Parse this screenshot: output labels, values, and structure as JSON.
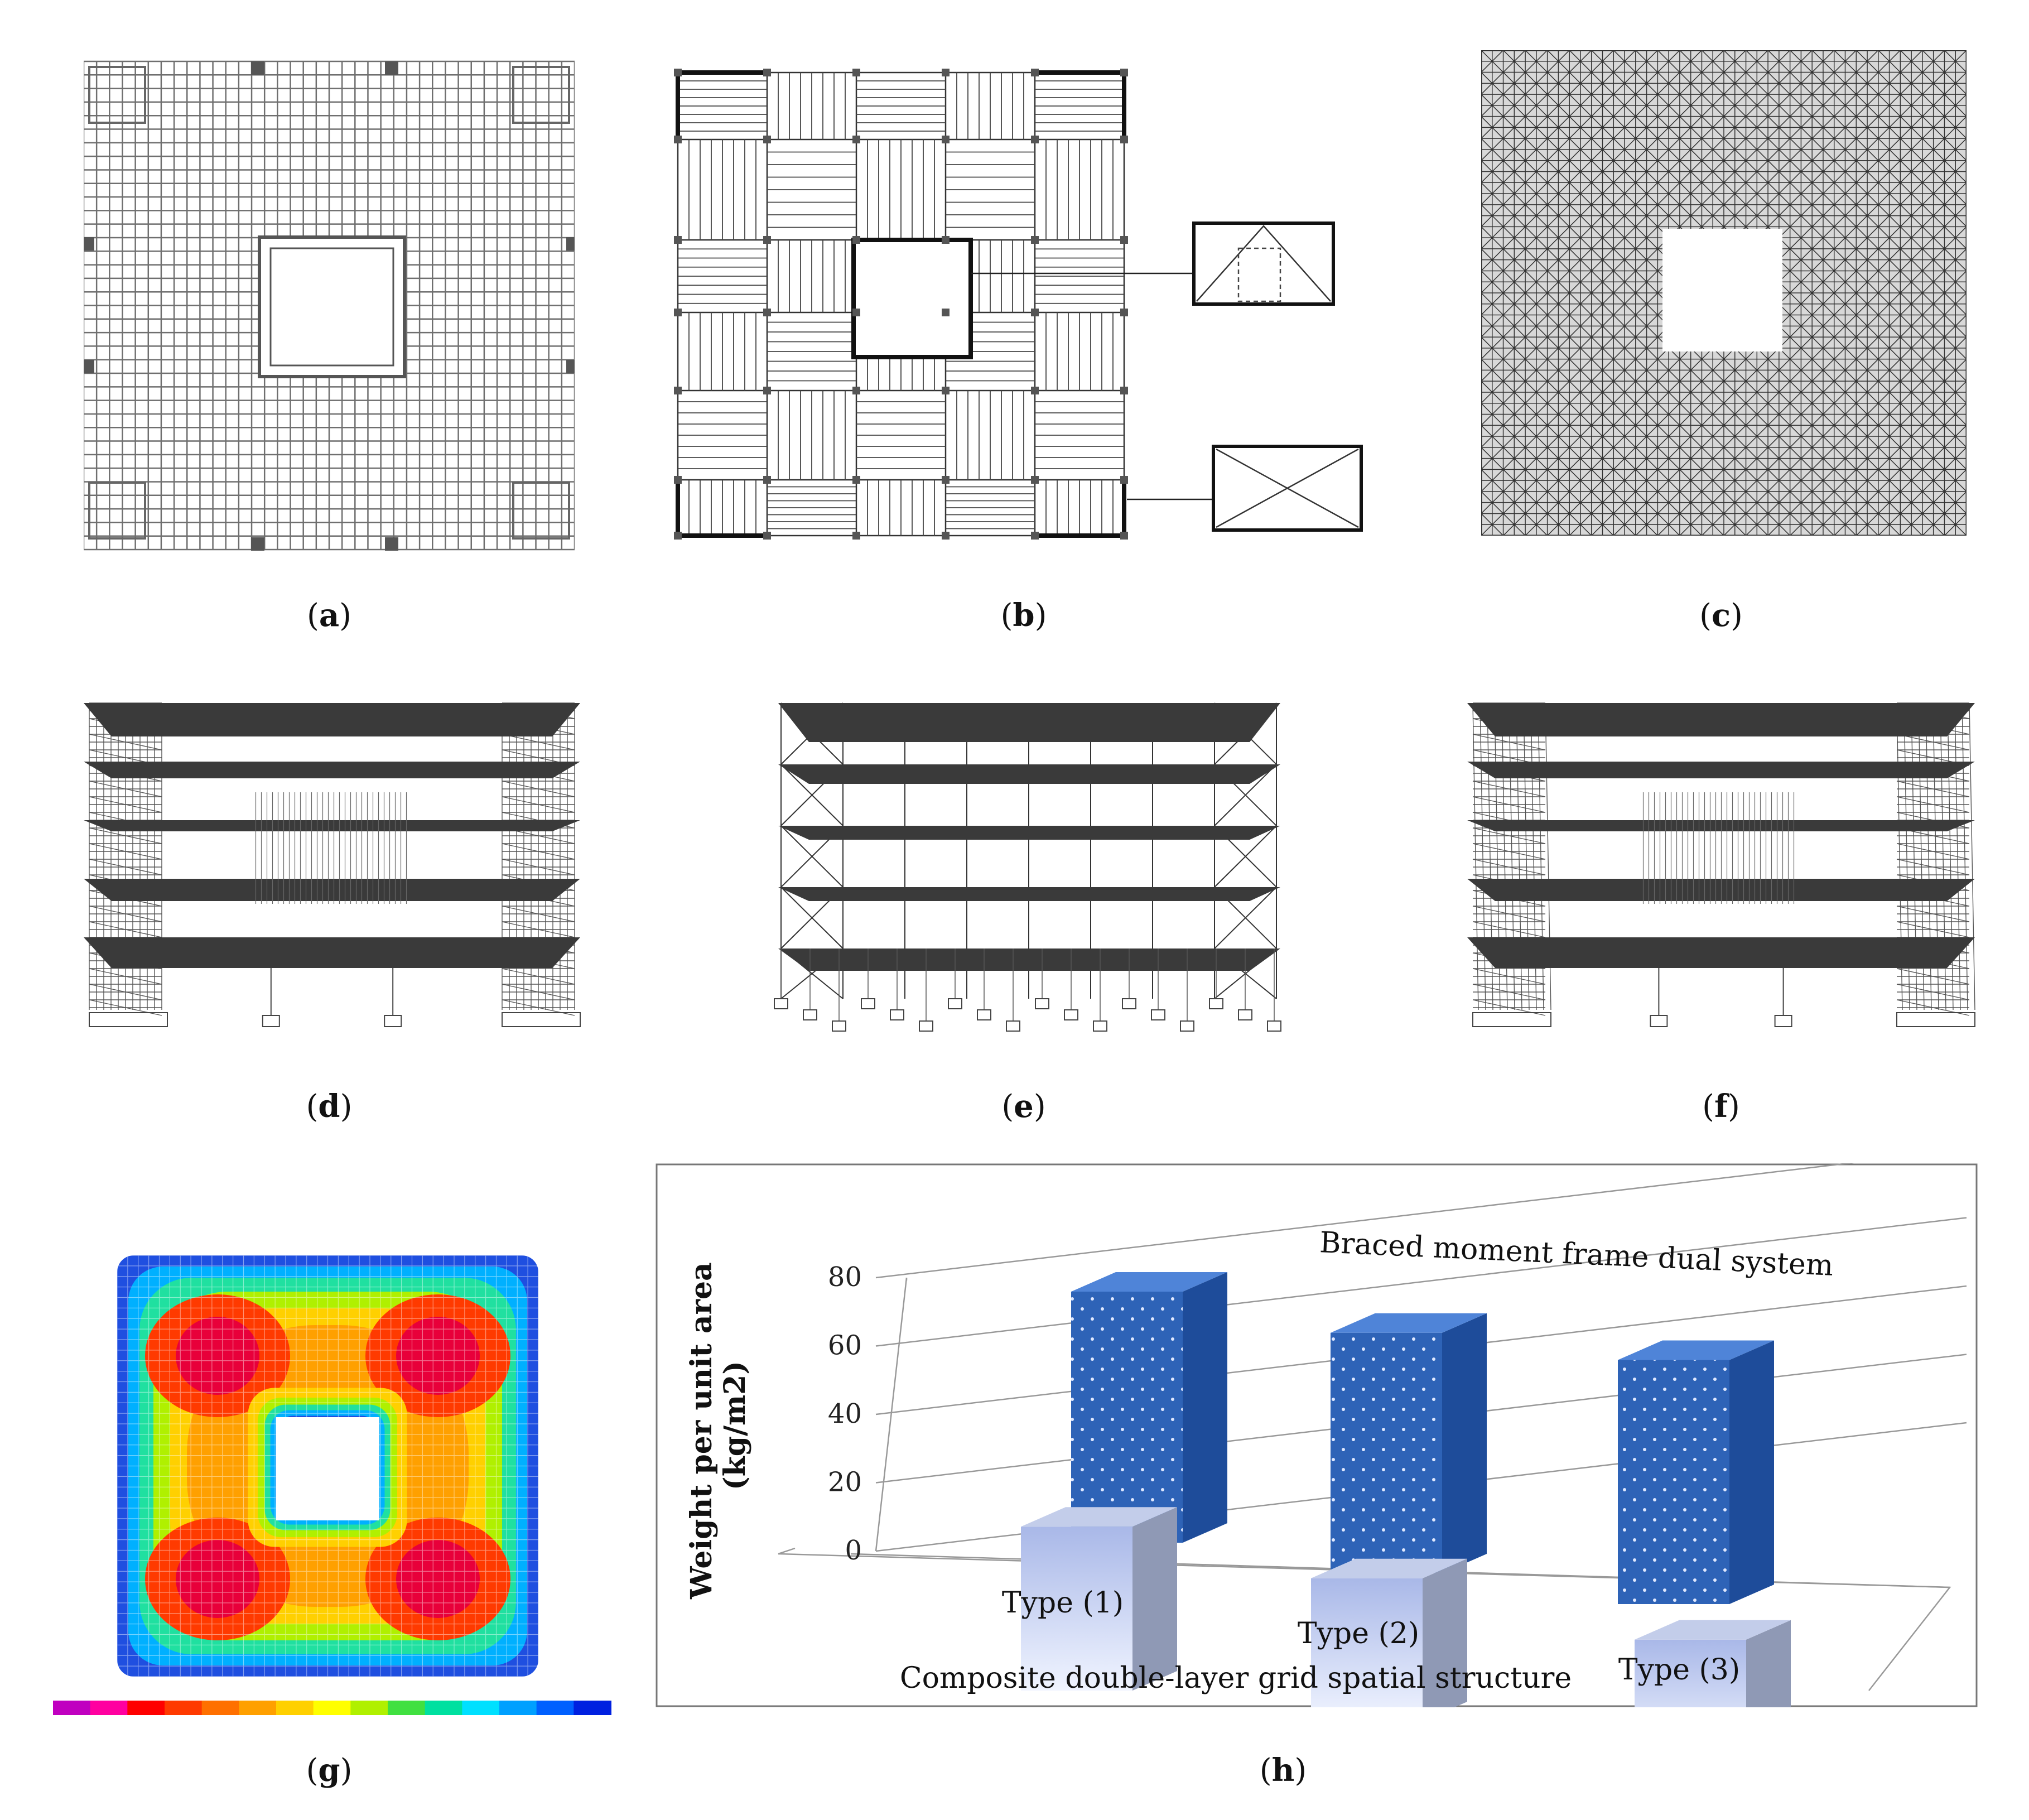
{
  "captions": {
    "a": "a",
    "b": "b",
    "c": "c",
    "d": "d",
    "e": "e",
    "f": "f",
    "g": "g",
    "h": "h"
  },
  "colors": {
    "grid_line": "#6f6f6f",
    "slab": "#3a3a3a",
    "bar_light": "#c9d2ee",
    "bar_dark": "#2e63b7"
  },
  "contour_legend": {
    "colors": [
      "#c000c0",
      "#ff00a0",
      "#ff0000",
      "#ff3a00",
      "#ff7000",
      "#ffa000",
      "#ffd000",
      "#ffff00",
      "#b0f000",
      "#40e040",
      "#00e0a0",
      "#00e0ff",
      "#00a0ff",
      "#0060ff",
      "#0020e0"
    ]
  },
  "chart_data": {
    "type": "bar",
    "title": "",
    "categories": [
      "Type (1)",
      "Type (2)",
      "Type (3)"
    ],
    "ylabel": "Weight per unit area (kg/m2)",
    "xlabel": "",
    "ylim": [
      0,
      80
    ],
    "yticks": [
      "0",
      "20",
      "40",
      "60",
      "80"
    ],
    "series": [
      {
        "name": "Composite double-layer grid spatial structure",
        "values": [
          47,
          41,
          33
        ]
      },
      {
        "name": "Braced moment frame dual system",
        "values": [
          72,
          69,
          70
        ]
      }
    ],
    "legend": "series labels placed on chart (front row bottom, back row top)"
  }
}
